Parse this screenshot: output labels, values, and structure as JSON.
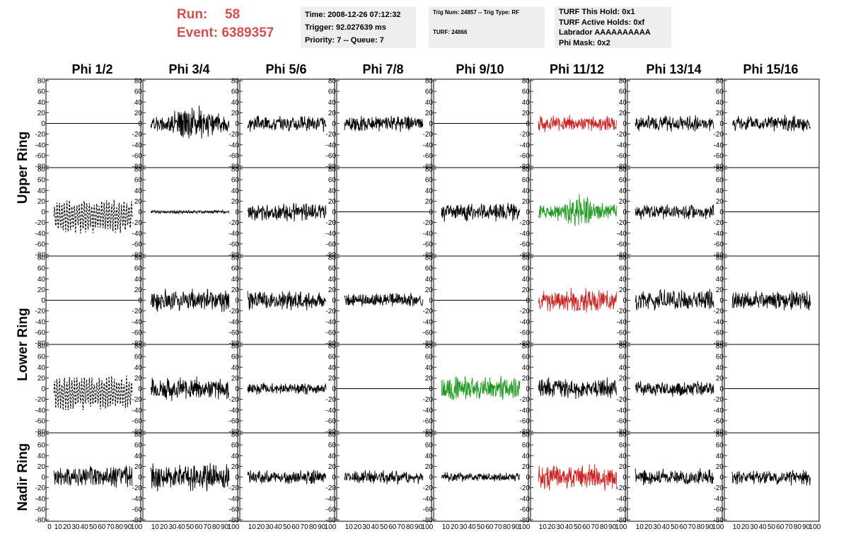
{
  "header": {
    "run_label": "Run:",
    "run_value": "58",
    "event_label": "Event:",
    "event_value": "6389357",
    "time_line": "Time: 2008-12-26 07:12:32",
    "trigger_line": "Trigger: 92.027639 ms",
    "priority_line": "Priority: 7 -- Queue: 7",
    "trig_line": "Trig Num: 24857 -- Trig Type: RF",
    "turf_line": "TURF: 24866",
    "turf_hold_line": "TURF This Hold: 0x1",
    "turf_active_line": "TURF Active Holds: 0xf",
    "labrador_line": "Labrador AAAAAAAAAA",
    "phi_mask_line": "Phi Mask: 0x2"
  },
  "chart_data": {
    "type": "line",
    "columns": [
      "Phi 1/2",
      "Phi 3/4",
      "Phi 5/6",
      "Phi 7/8",
      "Phi 9/10",
      "Phi 11/12",
      "Phi 13/14",
      "Phi 15/16"
    ],
    "ring_labels": [
      {
        "text": "Upper Ring",
        "rows": [
          0,
          1
        ]
      },
      {
        "text": "Lower Ring",
        "rows": [
          2,
          3
        ]
      },
      {
        "text": "Nadir Ring",
        "rows": [
          4
        ]
      }
    ],
    "xlim": [
      0,
      100
    ],
    "ylim": [
      -80,
      80
    ],
    "y_ticks": [
      80,
      60,
      40,
      20,
      0,
      -20,
      -40,
      -60,
      -80
    ],
    "x_ticks": [
      0,
      10,
      20,
      30,
      40,
      50,
      60,
      70,
      80,
      90,
      100
    ],
    "colors": {
      "black": "#000000",
      "red": "#cc2222",
      "green": "#229922"
    },
    "panels": [
      [
        {
          "style": "flat",
          "color": "black",
          "amp": 0,
          "seed": 1
        },
        {
          "style": "noise",
          "color": "black",
          "amp": 22,
          "seed": 2,
          "env": "mid"
        },
        {
          "style": "noise",
          "color": "black",
          "amp": 14,
          "seed": 3
        },
        {
          "style": "noise",
          "color": "black",
          "amp": 14,
          "seed": 4
        },
        {
          "style": "flat",
          "color": "black",
          "amp": 0,
          "seed": 5
        },
        {
          "style": "noise",
          "color": "red",
          "amp": 14,
          "seed": 6
        },
        {
          "style": "noise",
          "color": "black",
          "amp": 14,
          "seed": 7
        },
        {
          "style": "noise",
          "color": "black",
          "amp": 14,
          "seed": 8
        }
      ],
      [
        {
          "style": "dashed",
          "color": "black",
          "amp": 30,
          "seed": 11
        },
        {
          "style": "noise",
          "color": "black",
          "amp": 3,
          "seed": 12
        },
        {
          "style": "noise",
          "color": "black",
          "amp": 15,
          "seed": 13
        },
        {
          "style": "flat",
          "color": "black",
          "amp": 0,
          "seed": 14
        },
        {
          "style": "noise",
          "color": "black",
          "amp": 16,
          "seed": 15
        },
        {
          "style": "noise",
          "color": "green",
          "amp": 20,
          "seed": 16,
          "env": "mid"
        },
        {
          "style": "noise",
          "color": "black",
          "amp": 13,
          "seed": 17
        },
        {
          "style": "flat",
          "color": "black",
          "amp": 0,
          "seed": 18
        }
      ],
      [
        {
          "style": "flat",
          "color": "black",
          "amp": 0,
          "seed": 21
        },
        {
          "style": "noise",
          "color": "black",
          "amp": 20,
          "seed": 22
        },
        {
          "style": "noise",
          "color": "black",
          "amp": 18,
          "seed": 23
        },
        {
          "style": "noise",
          "color": "black",
          "amp": 12,
          "seed": 24
        },
        {
          "style": "flat",
          "color": "black",
          "amp": 0,
          "seed": 25
        },
        {
          "style": "noise",
          "color": "red",
          "amp": 20,
          "seed": 26
        },
        {
          "style": "noise",
          "color": "black",
          "amp": 18,
          "seed": 27
        },
        {
          "style": "noise",
          "color": "black",
          "amp": 17,
          "seed": 28
        }
      ],
      [
        {
          "style": "dashed",
          "color": "black",
          "amp": 30,
          "seed": 31
        },
        {
          "style": "noise",
          "color": "black",
          "amp": 20,
          "seed": 32
        },
        {
          "style": "noise",
          "color": "black",
          "amp": 10,
          "seed": 33
        },
        {
          "style": "flat",
          "color": "black",
          "amp": 0,
          "seed": 34
        },
        {
          "style": "noise",
          "color": "green",
          "amp": 22,
          "seed": 35
        },
        {
          "style": "noise",
          "color": "black",
          "amp": 18,
          "seed": 36
        },
        {
          "style": "noise",
          "color": "black",
          "amp": 14,
          "seed": 37
        },
        {
          "style": "flat",
          "color": "black",
          "amp": 0,
          "seed": 38
        }
      ],
      [
        {
          "style": "noise",
          "color": "black",
          "amp": 20,
          "seed": 41
        },
        {
          "style": "noise",
          "color": "black",
          "amp": 24,
          "seed": 42
        },
        {
          "style": "noise",
          "color": "black",
          "amp": 12,
          "seed": 43
        },
        {
          "style": "noise",
          "color": "black",
          "amp": 12,
          "seed": 44
        },
        {
          "style": "noise",
          "color": "black",
          "amp": 8,
          "seed": 45
        },
        {
          "style": "noise",
          "color": "red",
          "amp": 22,
          "seed": 46
        },
        {
          "style": "noise",
          "color": "black",
          "amp": 14,
          "seed": 47
        },
        {
          "style": "noise",
          "color": "black",
          "amp": 14,
          "seed": 48
        }
      ]
    ]
  }
}
